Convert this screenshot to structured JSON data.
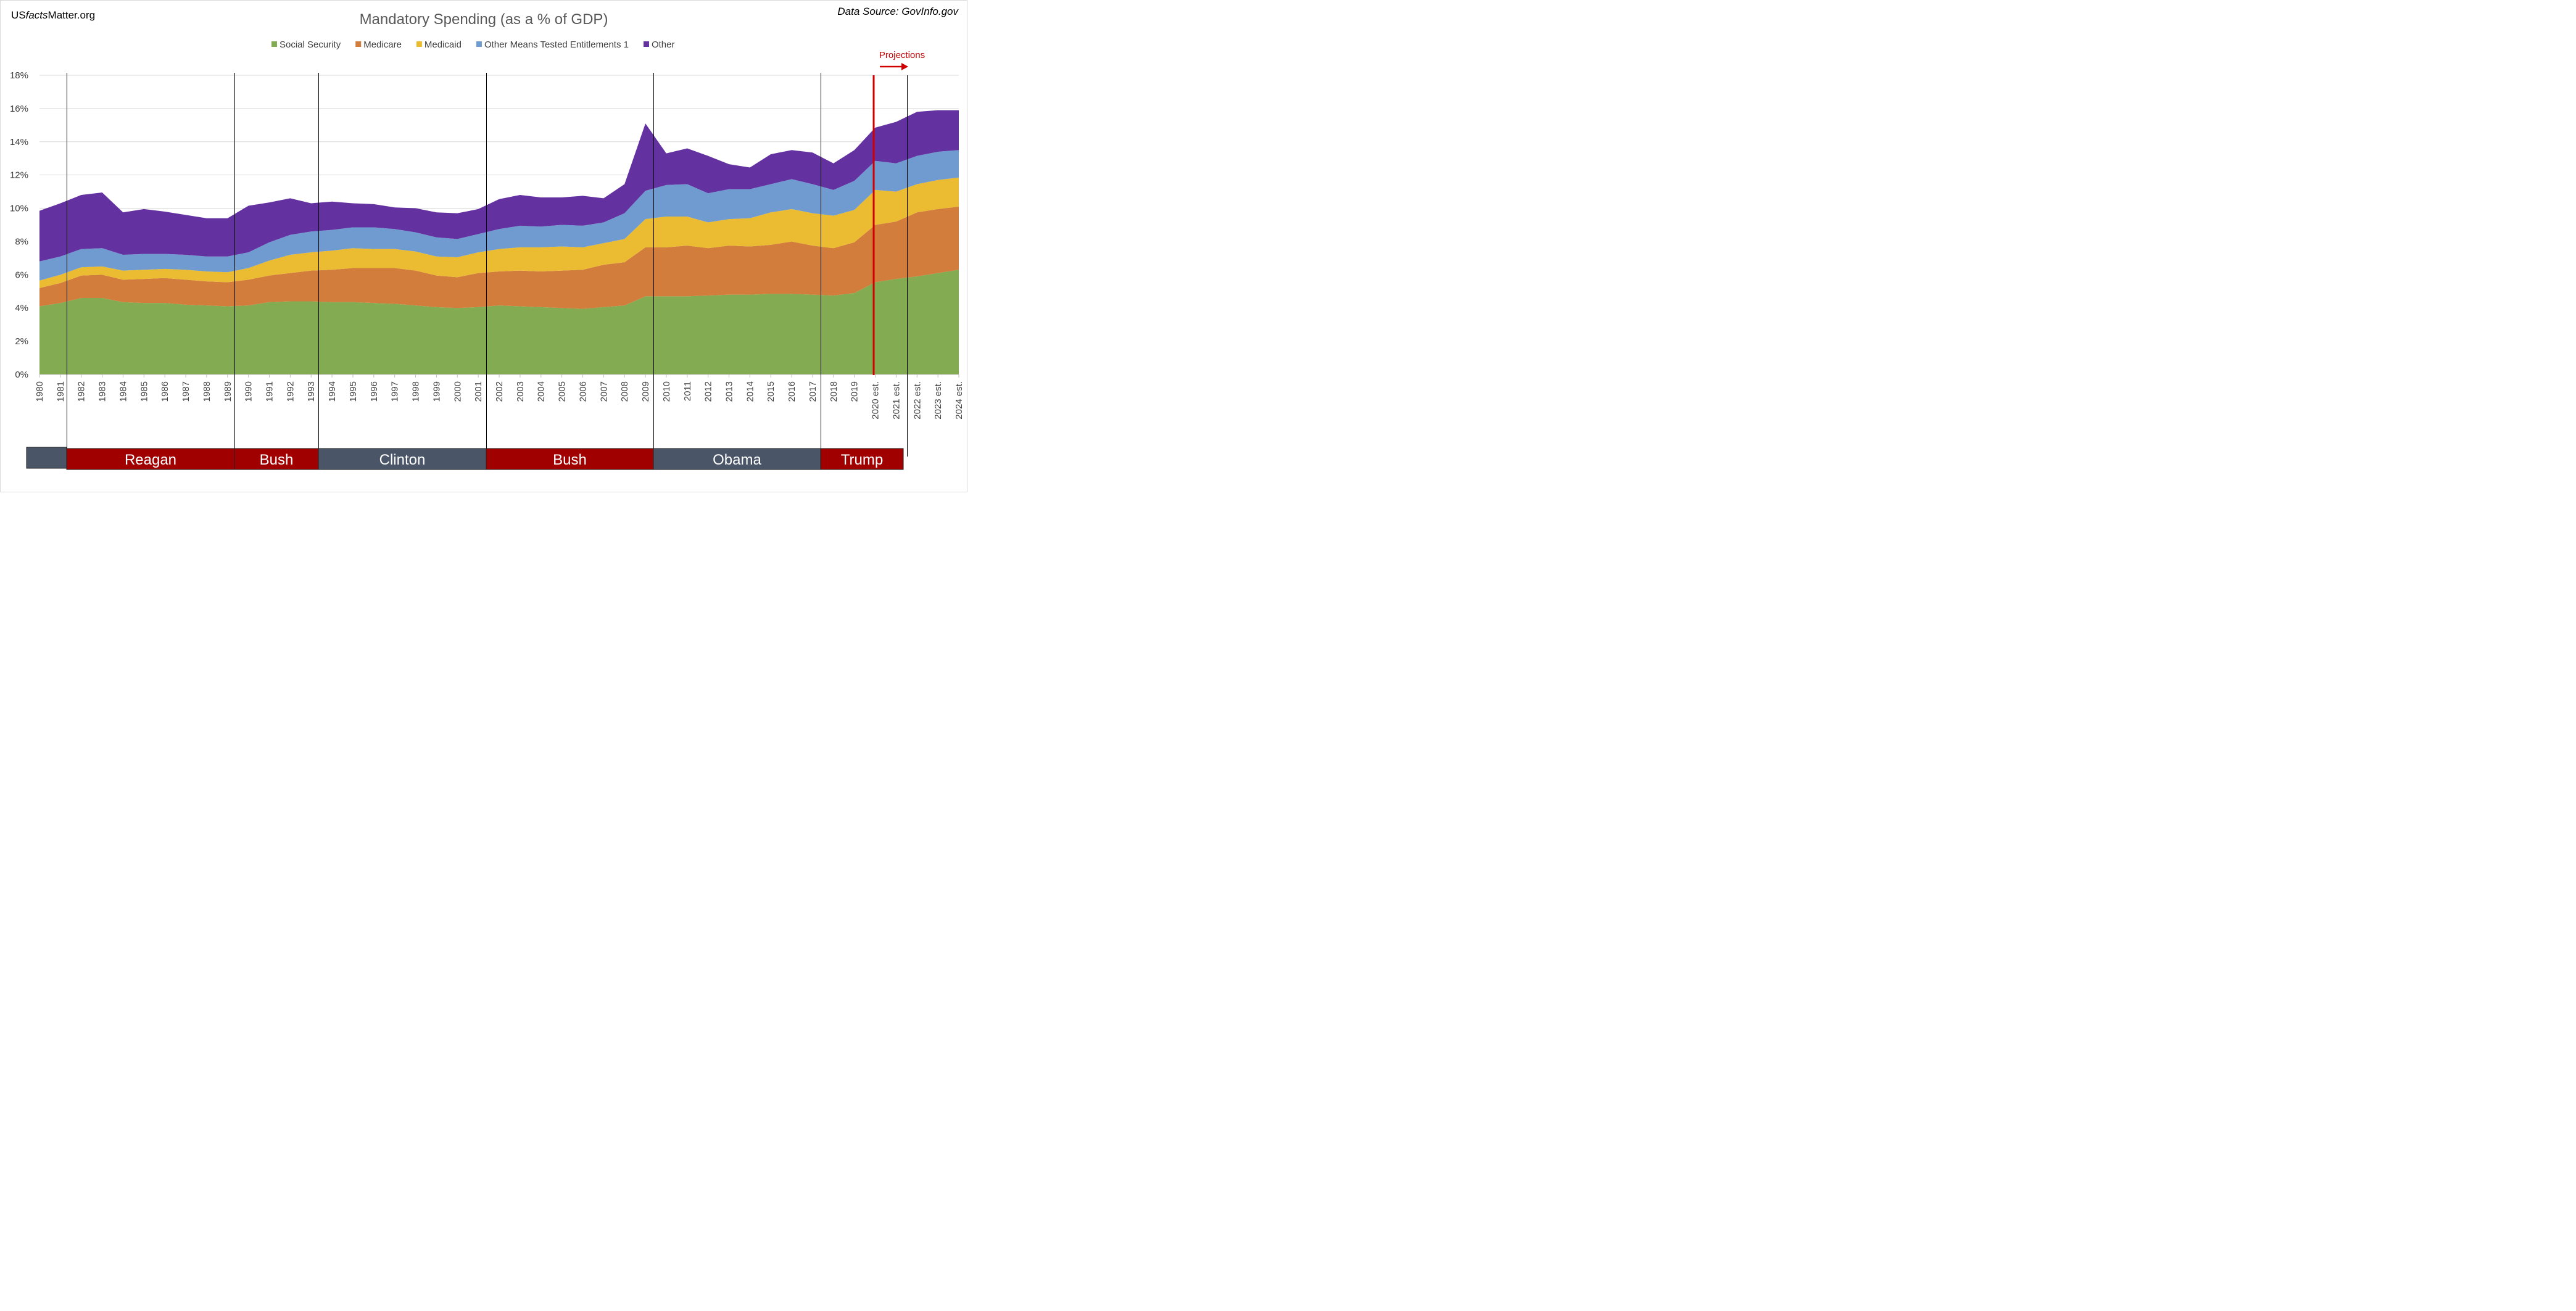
{
  "brand": {
    "prefix": "US",
    "italic": "facts",
    "suffix": "Matter.org"
  },
  "source": "Data Source: GovInfo.gov",
  "projection_label": "Projections",
  "colors": {
    "social_security": "#82ab52",
    "medicare": "#d27d3c",
    "medicaid": "#ebbc31",
    "other_means": "#6f9bd1",
    "other": "#6432a0",
    "republican": "#a00000",
    "democrat": "#4a5568",
    "projection_line": "#d00000"
  },
  "administrations": [
    {
      "name": "",
      "party": "democrat"
    },
    {
      "name": "Reagan",
      "party": "republican"
    },
    {
      "name": "Bush",
      "party": "republican"
    },
    {
      "name": "Clinton",
      "party": "democrat"
    },
    {
      "name": "Bush",
      "party": "republican"
    },
    {
      "name": "Obama",
      "party": "democrat"
    },
    {
      "name": "Trump",
      "party": "republican"
    }
  ],
  "chart_data": {
    "type": "area",
    "stacked": true,
    "title": "Mandatory Spending (as a % of GDP)",
    "xlabel": "",
    "ylabel": "",
    "ylim": [
      0,
      18
    ],
    "yticks": [
      "0%",
      "2%",
      "4%",
      "6%",
      "8%",
      "10%",
      "12%",
      "14%",
      "16%",
      "18%"
    ],
    "legend_position": "top-center",
    "grid": true,
    "categories": [
      "1980",
      "1981",
      "1982",
      "1983",
      "1984",
      "1985",
      "1986",
      "1987",
      "1988",
      "1989",
      "1990",
      "1991",
      "1992",
      "1993",
      "1994",
      "1995",
      "1996",
      "1997",
      "1998",
      "1999",
      "2000",
      "2001",
      "2002",
      "2003",
      "2004",
      "2005",
      "2006",
      "2007",
      "2008",
      "2009",
      "2010",
      "2011",
      "2012",
      "2013",
      "2014",
      "2015",
      "2016",
      "2017",
      "2018",
      "2019",
      "2020 est.",
      "2021 est.",
      "2022 est.",
      "2023 est.",
      "2024 est."
    ],
    "series": [
      {
        "name": "Social Security",
        "key": "social_security",
        "values": [
          4.1,
          4.3,
          4.6,
          4.6,
          4.35,
          4.3,
          4.3,
          4.2,
          4.15,
          4.1,
          4.15,
          4.35,
          4.4,
          4.4,
          4.35,
          4.35,
          4.3,
          4.25,
          4.15,
          4.05,
          4.0,
          4.05,
          4.15,
          4.1,
          4.05,
          4.0,
          3.95,
          4.05,
          4.15,
          4.7,
          4.7,
          4.7,
          4.75,
          4.8,
          4.8,
          4.85,
          4.85,
          4.8,
          4.75,
          4.9,
          5.55,
          5.75,
          5.9,
          6.1,
          6.3
        ]
      },
      {
        "name": "Medicare",
        "key": "medicare",
        "values": [
          1.1,
          1.2,
          1.35,
          1.4,
          1.35,
          1.45,
          1.5,
          1.5,
          1.45,
          1.45,
          1.55,
          1.6,
          1.7,
          1.85,
          1.95,
          2.05,
          2.1,
          2.15,
          2.1,
          1.9,
          1.85,
          2.05,
          2.05,
          2.15,
          2.15,
          2.25,
          2.35,
          2.55,
          2.6,
          2.95,
          2.95,
          3.05,
          2.85,
          2.95,
          2.9,
          2.95,
          3.15,
          2.95,
          2.85,
          3.05,
          3.45,
          3.45,
          3.85,
          3.85,
          3.8
        ]
      },
      {
        "name": "Medicaid",
        "key": "medicaid",
        "values": [
          0.45,
          0.5,
          0.5,
          0.5,
          0.55,
          0.55,
          0.55,
          0.6,
          0.6,
          0.6,
          0.7,
          0.9,
          1.1,
          1.1,
          1.15,
          1.2,
          1.15,
          1.15,
          1.15,
          1.15,
          1.2,
          1.25,
          1.35,
          1.4,
          1.45,
          1.45,
          1.35,
          1.3,
          1.4,
          1.7,
          1.85,
          1.75,
          1.55,
          1.6,
          1.7,
          1.95,
          1.95,
          1.95,
          1.95,
          1.95,
          2.1,
          1.8,
          1.7,
          1.75,
          1.75
        ]
      },
      {
        "name": "Other Means Tested Entitlements 1",
        "key": "other_means",
        "values": [
          1.15,
          1.1,
          1.1,
          1.1,
          0.95,
          0.95,
          0.9,
          0.9,
          0.9,
          0.95,
          0.95,
          1.1,
          1.2,
          1.25,
          1.25,
          1.25,
          1.3,
          1.2,
          1.15,
          1.15,
          1.1,
          1.1,
          1.2,
          1.3,
          1.25,
          1.3,
          1.3,
          1.25,
          1.55,
          1.7,
          1.9,
          1.95,
          1.75,
          1.8,
          1.75,
          1.7,
          1.8,
          1.75,
          1.55,
          1.75,
          1.75,
          1.7,
          1.7,
          1.7,
          1.65
        ]
      },
      {
        "name": "Other",
        "key": "other",
        "values": [
          3.05,
          3.2,
          3.25,
          3.35,
          2.55,
          2.7,
          2.55,
          2.4,
          2.3,
          2.3,
          2.8,
          2.4,
          2.2,
          1.7,
          1.7,
          1.45,
          1.4,
          1.3,
          1.45,
          1.5,
          1.55,
          1.5,
          1.8,
          1.85,
          1.75,
          1.65,
          1.8,
          1.45,
          1.75,
          4.05,
          1.9,
          2.15,
          2.25,
          1.5,
          1.3,
          1.8,
          1.75,
          1.9,
          1.6,
          1.85,
          2.0,
          2.5,
          2.65,
          2.5,
          2.4
        ]
      }
    ]
  }
}
